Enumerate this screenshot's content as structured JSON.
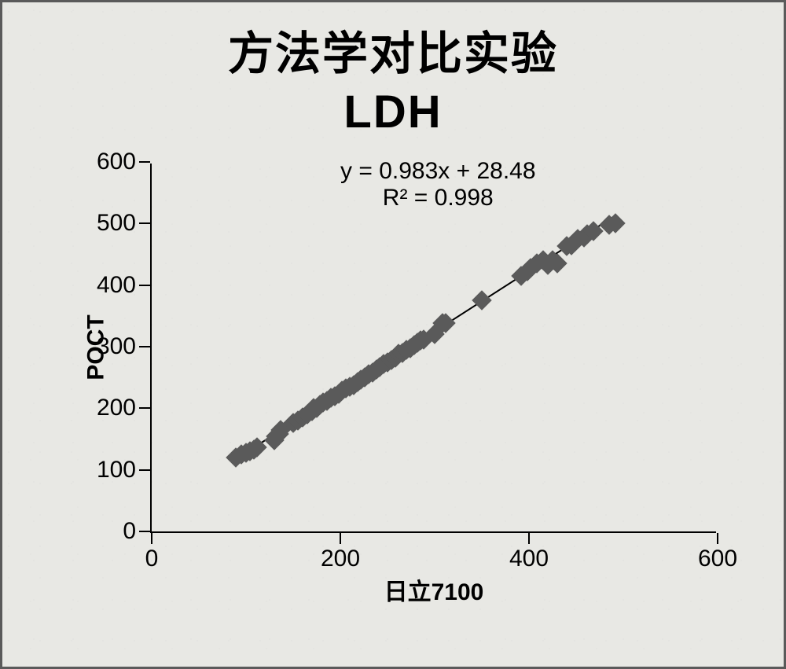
{
  "title": {
    "line1": "方法学对比实验",
    "line2": "LDH",
    "fontsize": 58,
    "color": "#000000"
  },
  "chart": {
    "type": "scatter",
    "background_color": "#e8e8e4",
    "border_color": "#5a5a5a",
    "axis_color": "#000000",
    "xlabel_prefix": "日立",
    "xlabel_num": "7100",
    "ylabel": "POCT",
    "label_fontsize": 30,
    "tick_fontsize": 30,
    "xlim": [
      0,
      600
    ],
    "ylim": [
      0,
      600
    ],
    "xticks": [
      0,
      200,
      400,
      600
    ],
    "yticks": [
      0,
      100,
      200,
      300,
      400,
      500,
      600
    ],
    "marker_color": "#5a5a5a",
    "marker_size": 18,
    "marker_shape": "diamond",
    "line_color": "#000000",
    "line_width": 2,
    "equation_line1": "y = 0.983x + 28.48",
    "equation_line2": "R² = 0.998",
    "equation_fontsize": 30,
    "fit": {
      "slope": 0.983,
      "intercept": 28.48,
      "r2": 0.998
    },
    "points": [
      {
        "x": 89,
        "y": 120
      },
      {
        "x": 95,
        "y": 125
      },
      {
        "x": 100,
        "y": 128
      },
      {
        "x": 104,
        "y": 130
      },
      {
        "x": 108,
        "y": 133
      },
      {
        "x": 112,
        "y": 136
      },
      {
        "x": 130,
        "y": 148
      },
      {
        "x": 132,
        "y": 155
      },
      {
        "x": 135,
        "y": 158
      },
      {
        "x": 137,
        "y": 165
      },
      {
        "x": 150,
        "y": 176
      },
      {
        "x": 155,
        "y": 180
      },
      {
        "x": 160,
        "y": 185
      },
      {
        "x": 165,
        "y": 190
      },
      {
        "x": 170,
        "y": 195
      },
      {
        "x": 172,
        "y": 200
      },
      {
        "x": 175,
        "y": 200
      },
      {
        "x": 178,
        "y": 206
      },
      {
        "x": 182,
        "y": 210
      },
      {
        "x": 186,
        "y": 212
      },
      {
        "x": 190,
        "y": 217
      },
      {
        "x": 194,
        "y": 220
      },
      {
        "x": 198,
        "y": 224
      },
      {
        "x": 202,
        "y": 228
      },
      {
        "x": 206,
        "y": 232
      },
      {
        "x": 210,
        "y": 235
      },
      {
        "x": 214,
        "y": 238
      },
      {
        "x": 218,
        "y": 242
      },
      {
        "x": 222,
        "y": 247
      },
      {
        "x": 226,
        "y": 250
      },
      {
        "x": 230,
        "y": 255
      },
      {
        "x": 234,
        "y": 258
      },
      {
        "x": 238,
        "y": 263
      },
      {
        "x": 242,
        "y": 267
      },
      {
        "x": 246,
        "y": 272
      },
      {
        "x": 250,
        "y": 275
      },
      {
        "x": 254,
        "y": 278
      },
      {
        "x": 258,
        "y": 282
      },
      {
        "x": 262,
        "y": 288
      },
      {
        "x": 266,
        "y": 290
      },
      {
        "x": 270,
        "y": 295
      },
      {
        "x": 274,
        "y": 298
      },
      {
        "x": 278,
        "y": 303
      },
      {
        "x": 282,
        "y": 306
      },
      {
        "x": 285,
        "y": 310
      },
      {
        "x": 288,
        "y": 312
      },
      {
        "x": 300,
        "y": 320
      },
      {
        "x": 308,
        "y": 338
      },
      {
        "x": 312,
        "y": 338
      },
      {
        "x": 350,
        "y": 375
      },
      {
        "x": 392,
        "y": 415
      },
      {
        "x": 398,
        "y": 422
      },
      {
        "x": 402,
        "y": 428
      },
      {
        "x": 408,
        "y": 435
      },
      {
        "x": 415,
        "y": 440
      },
      {
        "x": 420,
        "y": 433
      },
      {
        "x": 425,
        "y": 440
      },
      {
        "x": 430,
        "y": 435
      },
      {
        "x": 440,
        "y": 463
      },
      {
        "x": 445,
        "y": 465
      },
      {
        "x": 448,
        "y": 470
      },
      {
        "x": 452,
        "y": 475
      },
      {
        "x": 458,
        "y": 478
      },
      {
        "x": 462,
        "y": 483
      },
      {
        "x": 468,
        "y": 488
      },
      {
        "x": 485,
        "y": 498
      },
      {
        "x": 492,
        "y": 500
      }
    ]
  }
}
